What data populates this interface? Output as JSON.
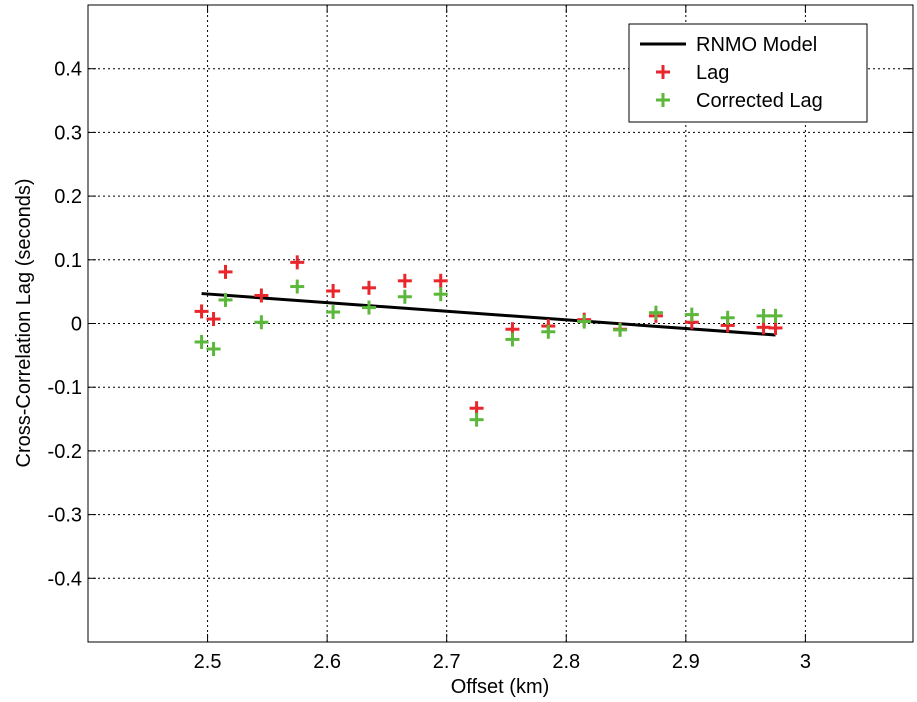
{
  "chart_data": {
    "type": "scatter",
    "title": "",
    "xlabel": "Offset (km)",
    "ylabel": "Cross-Correlation Lag (seconds)",
    "xlim": [
      2.4,
      3.09
    ],
    "ylim": [
      -0.5,
      0.5
    ],
    "xticks": [
      2.5,
      2.6,
      2.7,
      2.8,
      2.9,
      3.0
    ],
    "xtick_labels": [
      "2.5",
      "2.6",
      "2.7",
      "2.8",
      "2.9",
      "3"
    ],
    "yticks": [
      -0.4,
      -0.3,
      -0.2,
      -0.1,
      0,
      0.1,
      0.2,
      0.3,
      0.4
    ],
    "ytick_labels": [
      "-0.4",
      "-0.3",
      "-0.2",
      "-0.1",
      "0",
      "0.1",
      "0.2",
      "0.3",
      "0.4"
    ],
    "grid": true,
    "legend_position": "top-right",
    "series": [
      {
        "name": "RNMO Model",
        "style": "line",
        "color": "#000000",
        "x": [
          2.495,
          2.975
        ],
        "y": [
          0.047,
          -0.018
        ]
      },
      {
        "name": "Lag",
        "style": "plus",
        "color": "#e8262b",
        "x": [
          2.495,
          2.505,
          2.515,
          2.545,
          2.575,
          2.605,
          2.635,
          2.665,
          2.695,
          2.725,
          2.755,
          2.785,
          2.815,
          2.845,
          2.875,
          2.905,
          2.935,
          2.965,
          2.975
        ],
        "y": [
          0.019,
          0.007,
          0.081,
          0.044,
          0.096,
          0.051,
          0.056,
          0.067,
          0.067,
          -0.133,
          -0.009,
          -0.004,
          0.006,
          -0.009,
          0.012,
          0.002,
          -0.003,
          -0.006,
          -0.007
        ]
      },
      {
        "name": "Corrected Lag",
        "style": "plus",
        "color": "#5cb83c",
        "x": [
          2.495,
          2.505,
          2.515,
          2.545,
          2.575,
          2.605,
          2.635,
          2.665,
          2.695,
          2.725,
          2.755,
          2.785,
          2.815,
          2.845,
          2.875,
          2.905,
          2.935,
          2.965,
          2.975
        ],
        "y": [
          -0.029,
          -0.04,
          0.037,
          0.002,
          0.058,
          0.018,
          0.025,
          0.042,
          0.046,
          -0.151,
          -0.025,
          -0.013,
          0.003,
          -0.01,
          0.017,
          0.014,
          0.009,
          0.012,
          0.012
        ]
      }
    ]
  }
}
